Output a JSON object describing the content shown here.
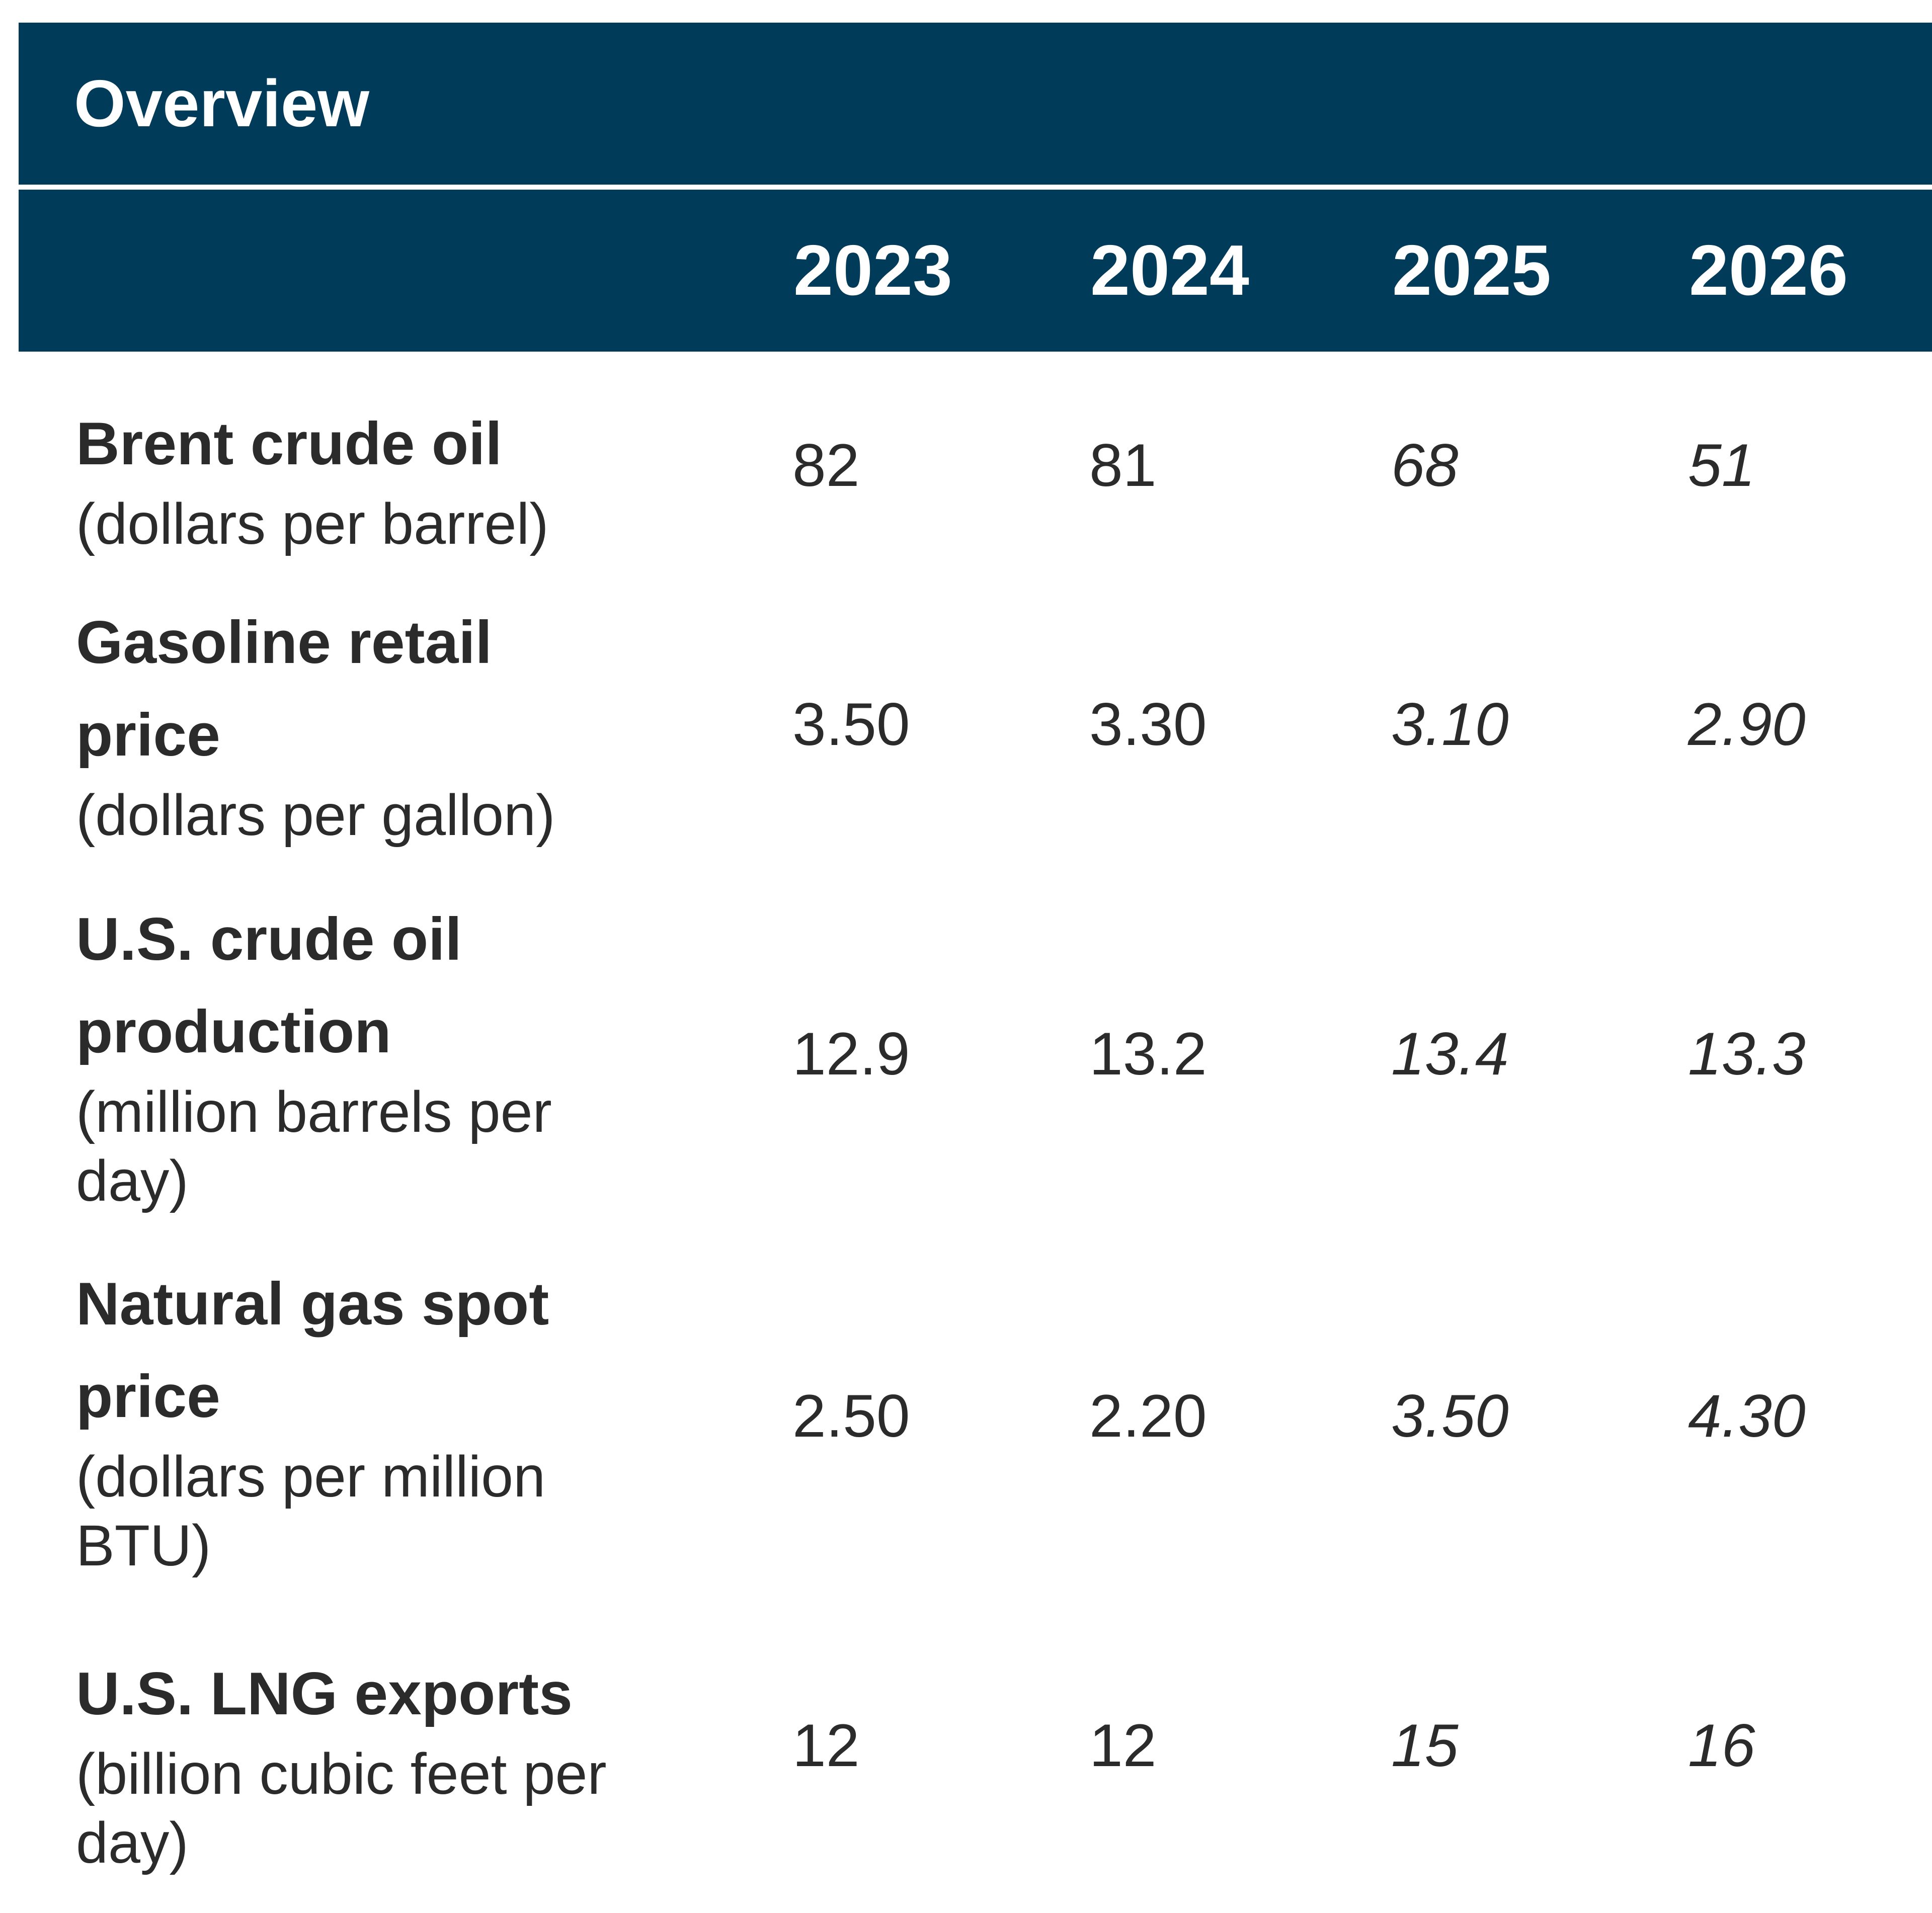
{
  "title": "Overview",
  "years": [
    "2023",
    "2024",
    "2025",
    "2026"
  ],
  "rows": [
    {
      "label": "Brent crude oil",
      "unit": "(dollars per barrel)",
      "values": [
        "82",
        "81",
        "68",
        "51"
      ]
    },
    {
      "label": "Gasoline retail price",
      "unit": "(dollars per gallon)",
      "values": [
        "3.50",
        "3.30",
        "3.10",
        "2.90"
      ]
    },
    {
      "label": "U.S. crude oil production",
      "unit": "(million barrels per day)",
      "values": [
        "12.9",
        "13.2",
        "13.4",
        "13.3"
      ]
    },
    {
      "label": "Natural gas spot price",
      "unit": "(dollars per million BTU)",
      "values": [
        "2.50",
        "2.20",
        "3.50",
        "4.30"
      ]
    },
    {
      "label": "U.S. LNG exports",
      "unit": "(billion cubic feet per day)",
      "values": [
        "12",
        "12",
        "15",
        "16"
      ]
    }
  ]
}
